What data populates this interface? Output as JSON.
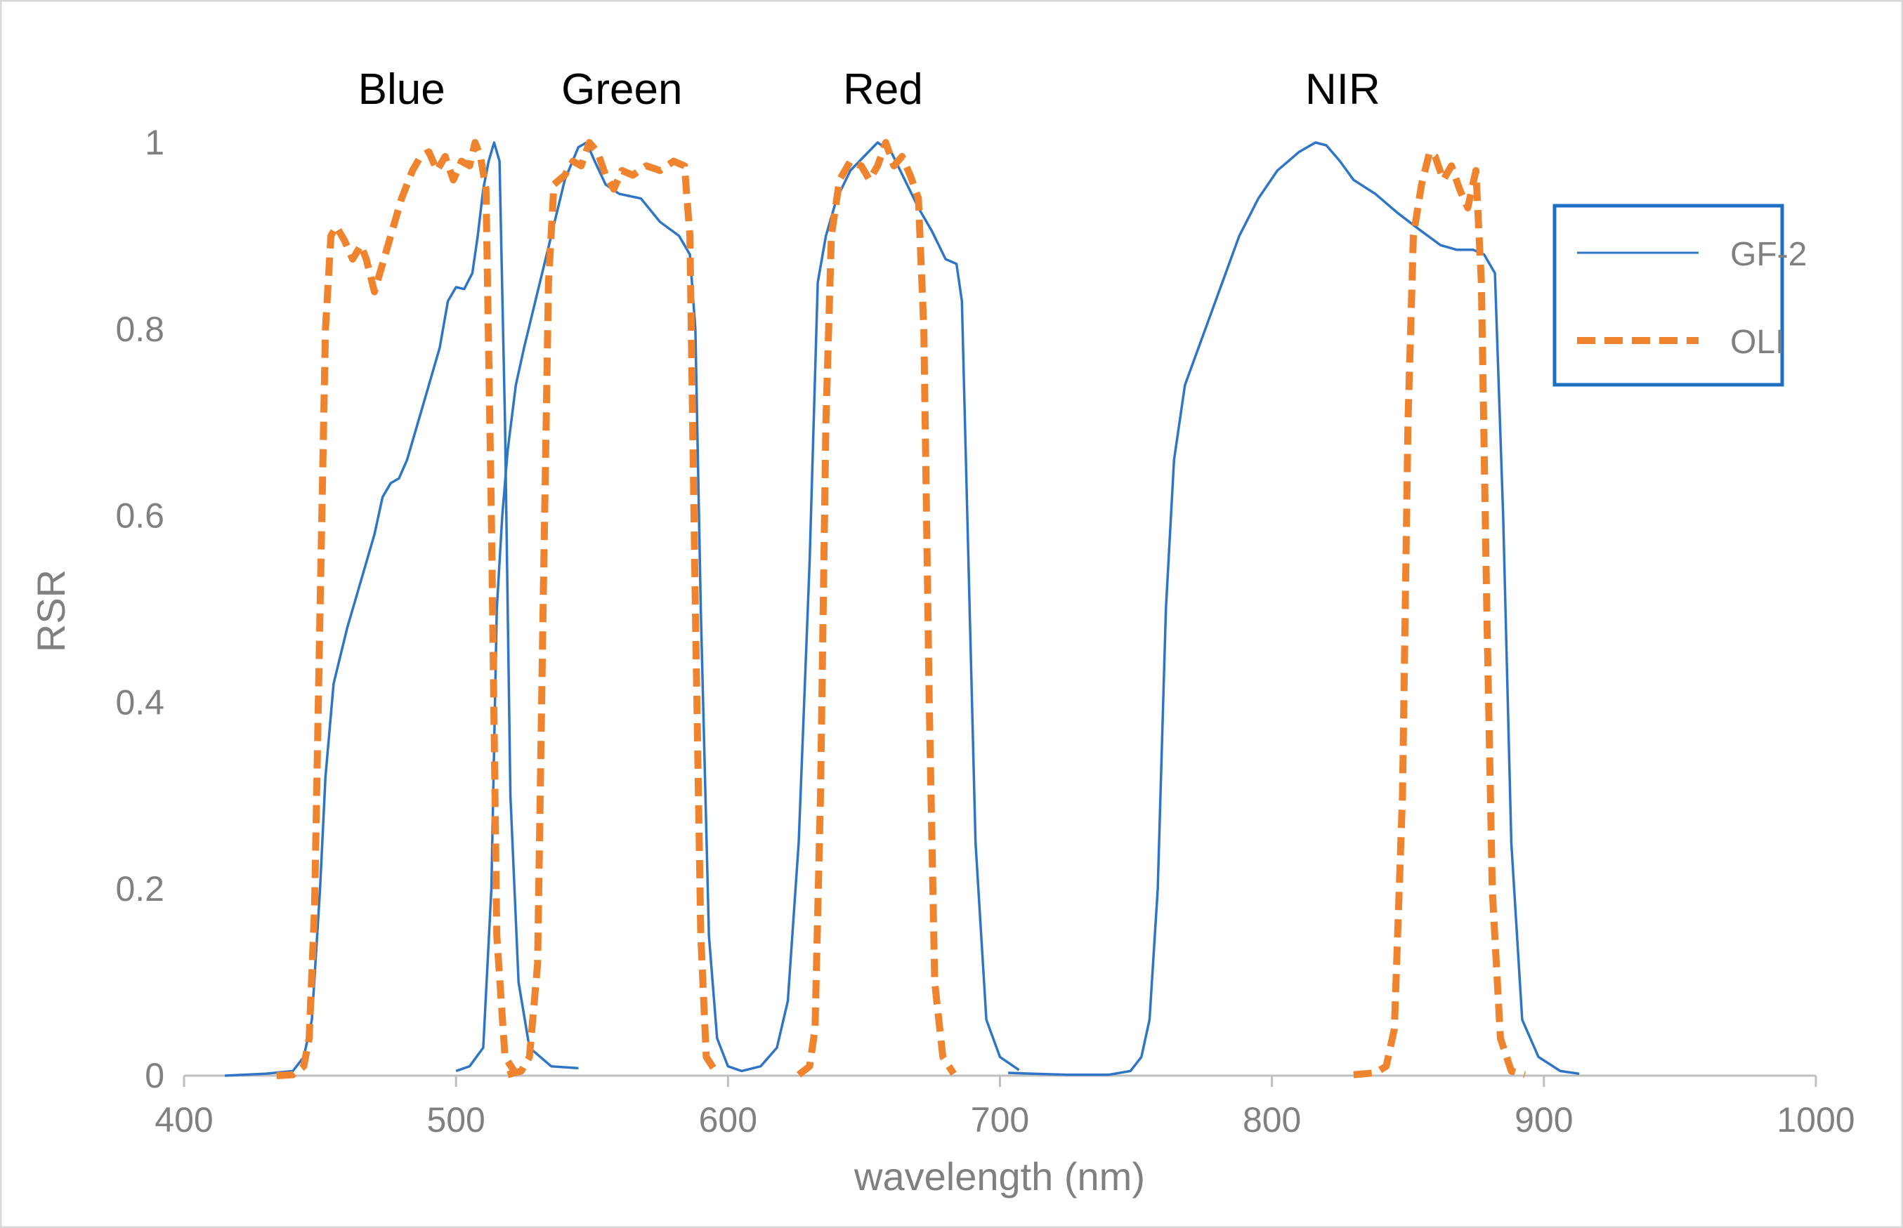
{
  "chart_data": {
    "type": "line",
    "title": "",
    "xlabel": "wavelength (nm)",
    "ylabel": "RSR",
    "xlim": [
      400,
      1000
    ],
    "ylim": [
      0,
      1
    ],
    "x_ticks": [
      400,
      500,
      600,
      700,
      800,
      900,
      1000
    ],
    "y_ticks": [
      0,
      0.2,
      0.4,
      0.6,
      0.8,
      1
    ],
    "y_tick_labels": [
      "0",
      "0.2",
      "0.4",
      "0.6",
      "0.8",
      "1"
    ],
    "grid": false,
    "legend_position": "right",
    "band_labels": [
      {
        "text": "Blue",
        "x": 480
      },
      {
        "text": "Green",
        "x": 561
      },
      {
        "text": "Red",
        "x": 657
      },
      {
        "text": "NIR",
        "x": 826
      }
    ],
    "series": [
      {
        "name": "GF-2",
        "color": "#2E75C7",
        "style": "solid",
        "segments": [
          [
            [
              415,
              0
            ],
            [
              430,
              0.002
            ],
            [
              440,
              0.005
            ],
            [
              444,
              0.02
            ],
            [
              447,
              0.06
            ],
            [
              450,
              0.2
            ],
            [
              452,
              0.32
            ],
            [
              455,
              0.42
            ],
            [
              460,
              0.48
            ],
            [
              465,
              0.53
            ],
            [
              470,
              0.58
            ],
            [
              473,
              0.62
            ],
            [
              476,
              0.635
            ],
            [
              479,
              0.64
            ],
            [
              482,
              0.66
            ],
            [
              486,
              0.7
            ],
            [
              490,
              0.74
            ],
            [
              494,
              0.78
            ],
            [
              497,
              0.83
            ],
            [
              500,
              0.845
            ],
            [
              503,
              0.843
            ],
            [
              506,
              0.86
            ],
            [
              508,
              0.9
            ],
            [
              510,
              0.95
            ],
            [
              512,
              0.98
            ],
            [
              514,
              1.0
            ],
            [
              516,
              0.98
            ],
            [
              518,
              0.7
            ],
            [
              520,
              0.3
            ],
            [
              523,
              0.1
            ],
            [
              527,
              0.03
            ],
            [
              535,
              0.01
            ],
            [
              545,
              0.008
            ]
          ],
          [
            [
              500,
              0.005
            ],
            [
              505,
              0.01
            ],
            [
              510,
              0.03
            ],
            [
              513,
              0.2
            ],
            [
              515,
              0.5
            ],
            [
              517,
              0.6
            ],
            [
              519,
              0.67
            ],
            [
              522,
              0.74
            ],
            [
              525,
              0.78
            ],
            [
              530,
              0.84
            ],
            [
              535,
              0.9
            ],
            [
              540,
              0.96
            ],
            [
              545,
              0.995
            ],
            [
              548,
              1.0
            ],
            [
              551,
              0.98
            ],
            [
              555,
              0.955
            ],
            [
              560,
              0.945
            ],
            [
              568,
              0.94
            ],
            [
              575,
              0.915
            ],
            [
              582,
              0.9
            ],
            [
              586,
              0.88
            ],
            [
              588,
              0.8
            ],
            [
              590,
              0.5
            ],
            [
              593,
              0.15
            ],
            [
              596,
              0.04
            ],
            [
              600,
              0.01
            ],
            [
              605,
              0.005
            ],
            [
              612,
              0.01
            ],
            [
              618,
              0.03
            ],
            [
              622,
              0.08
            ],
            [
              626,
              0.25
            ],
            [
              630,
              0.55
            ],
            [
              633,
              0.85
            ],
            [
              636,
              0.9
            ],
            [
              640,
              0.94
            ],
            [
              645,
              0.97
            ],
            [
              650,
              0.985
            ],
            [
              655,
              1.0
            ],
            [
              660,
              0.99
            ],
            [
              665,
              0.96
            ],
            [
              670,
              0.93
            ],
            [
              675,
              0.905
            ],
            [
              680,
              0.875
            ],
            [
              684,
              0.87
            ],
            [
              686,
              0.83
            ],
            [
              688,
              0.6
            ],
            [
              691,
              0.25
            ],
            [
              695,
              0.06
            ],
            [
              700,
              0.02
            ],
            [
              707,
              0.006
            ]
          ],
          [
            [
              703,
              0.003
            ],
            [
              712,
              0.002
            ],
            [
              725,
              0.001
            ],
            [
              740,
              0.001
            ],
            [
              748,
              0.005
            ],
            [
              752,
              0.02
            ],
            [
              755,
              0.06
            ],
            [
              758,
              0.2
            ],
            [
              761,
              0.5
            ],
            [
              764,
              0.66
            ],
            [
              768,
              0.74
            ],
            [
              773,
              0.78
            ],
            [
              778,
              0.82
            ],
            [
              783,
              0.86
            ],
            [
              788,
              0.9
            ],
            [
              795,
              0.94
            ],
            [
              802,
              0.97
            ],
            [
              810,
              0.99
            ],
            [
              816,
              1.0
            ],
            [
              820,
              0.997
            ],
            [
              825,
              0.98
            ],
            [
              830,
              0.96
            ],
            [
              838,
              0.945
            ],
            [
              846,
              0.925
            ],
            [
              855,
              0.905
            ],
            [
              862,
              0.89
            ],
            [
              868,
              0.885
            ],
            [
              874,
              0.885
            ],
            [
              878,
              0.88
            ],
            [
              882,
              0.86
            ],
            [
              885,
              0.6
            ],
            [
              888,
              0.25
            ],
            [
              892,
              0.06
            ],
            [
              898,
              0.02
            ],
            [
              906,
              0.005
            ],
            [
              913,
              0.002
            ]
          ]
        ]
      },
      {
        "name": "OLI",
        "color": "#F0832D",
        "style": "dashed",
        "segments": [
          [
            [
              434,
              0
            ],
            [
              440,
              0.001
            ],
            [
              444,
              0.01
            ],
            [
              446,
              0.04
            ],
            [
              448,
              0.18
            ],
            [
              450,
              0.5
            ],
            [
              452,
              0.8
            ],
            [
              454,
              0.9
            ],
            [
              456,
              0.91
            ],
            [
              459,
              0.895
            ],
            [
              462,
              0.875
            ],
            [
              465,
              0.89
            ],
            [
              467,
              0.875
            ],
            [
              470,
              0.84
            ],
            [
              473,
              0.87
            ],
            [
              476,
              0.9
            ],
            [
              480,
              0.94
            ],
            [
              484,
              0.97
            ],
            [
              487,
              0.985
            ],
            [
              490,
              0.99
            ],
            [
              493,
              0.97
            ],
            [
              496,
              0.985
            ],
            [
              499,
              0.96
            ],
            [
              502,
              0.98
            ],
            [
              505,
              0.975
            ],
            [
              507,
              1.0
            ],
            [
              509,
              0.985
            ],
            [
              511,
              0.95
            ],
            [
              513,
              0.6
            ],
            [
              515,
              0.15
            ],
            [
              518,
              0.02
            ],
            [
              522,
              0.002
            ]
          ],
          [
            [
              519,
              0.001
            ],
            [
              524,
              0.005
            ],
            [
              527,
              0.02
            ],
            [
              530,
              0.12
            ],
            [
              532,
              0.5
            ],
            [
              534,
              0.85
            ],
            [
              536,
              0.955
            ],
            [
              540,
              0.965
            ],
            [
              543,
              0.98
            ],
            [
              546,
              0.975
            ],
            [
              549,
              1.0
            ],
            [
              552,
              0.99
            ],
            [
              555,
              0.965
            ],
            [
              558,
              0.95
            ],
            [
              561,
              0.97
            ],
            [
              565,
              0.965
            ],
            [
              570,
              0.975
            ],
            [
              575,
              0.97
            ],
            [
              580,
              0.98
            ],
            [
              584,
              0.975
            ],
            [
              586,
              0.9
            ],
            [
              588,
              0.5
            ],
            [
              590,
              0.15
            ],
            [
              592,
              0.02
            ],
            [
              596,
              0.002
            ]
          ],
          [
            [
              626,
              0.001
            ],
            [
              630,
              0.01
            ],
            [
              632,
              0.05
            ],
            [
              634,
              0.3
            ],
            [
              636,
              0.7
            ],
            [
              638,
              0.9
            ],
            [
              641,
              0.96
            ],
            [
              645,
              0.98
            ],
            [
              649,
              0.975
            ],
            [
              652,
              0.96
            ],
            [
              655,
              0.975
            ],
            [
              658,
              1.0
            ],
            [
              661,
              0.975
            ],
            [
              664,
              0.985
            ],
            [
              667,
              0.965
            ],
            [
              670,
              0.94
            ],
            [
              672,
              0.8
            ],
            [
              674,
              0.4
            ],
            [
              676,
              0.1
            ],
            [
              679,
              0.02
            ],
            [
              683,
              0.002
            ]
          ],
          [
            [
              830,
              0.001
            ],
            [
              838,
              0.003
            ],
            [
              842,
              0.01
            ],
            [
              845,
              0.05
            ],
            [
              848,
              0.3
            ],
            [
              850,
              0.7
            ],
            [
              852,
              0.9
            ],
            [
              855,
              0.955
            ],
            [
              858,
              0.99
            ],
            [
              860,
              0.985
            ],
            [
              863,
              0.96
            ],
            [
              866,
              0.975
            ],
            [
              869,
              0.95
            ],
            [
              872,
              0.93
            ],
            [
              875,
              0.97
            ],
            [
              877,
              0.85
            ],
            [
              879,
              0.5
            ],
            [
              881,
              0.2
            ],
            [
              884,
              0.04
            ],
            [
              888,
              0.005
            ],
            [
              893,
              0.001
            ]
          ]
        ]
      }
    ]
  },
  "legend": {
    "items": [
      {
        "label": "GF-2"
      },
      {
        "label": "OLI"
      }
    ]
  }
}
